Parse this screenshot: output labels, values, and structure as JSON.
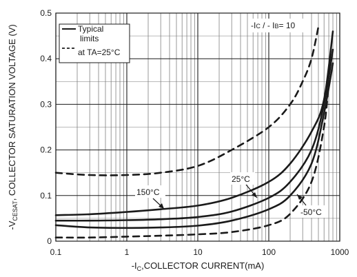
{
  "chart_data": {
    "type": "line",
    "title": "",
    "xscale": "log",
    "xlim": [
      0.1,
      1000
    ],
    "ylim": [
      0,
      0.5
    ],
    "x_ticks": [
      {
        "value": 0.1,
        "label": "0.1"
      },
      {
        "value": 1,
        "label": "1"
      },
      {
        "value": 10,
        "label": "10"
      },
      {
        "value": 100,
        "label": "100"
      },
      {
        "value": 1000,
        "label": "1000"
      }
    ],
    "y_ticks": [
      {
        "value": 0,
        "label": "0"
      },
      {
        "value": 0.1,
        "label": "0.1"
      },
      {
        "value": 0.2,
        "label": "0.2"
      },
      {
        "value": 0.3,
        "label": "0.3"
      },
      {
        "value": 0.4,
        "label": "0.4"
      },
      {
        "value": 0.5,
        "label": "0.5"
      }
    ],
    "ylabel": {
      "prefix": "-V",
      "sub": "CESAT",
      "suffix": ", COLLECTOR SATURATION VOLTAGE (V)"
    },
    "xlabel": {
      "prefix": "-I",
      "sub": "C",
      "suffix": ",COLLECTOR CURRENT(mA)"
    },
    "grid": true,
    "legend": {
      "position": "top-left",
      "typical_line1": "Typical",
      "typical_line2": "limits",
      "limits_line": "at TA=25°C"
    },
    "condition": {
      "text_a": "-I",
      "sub_a": "C",
      "text_b": " / - I",
      "sub_b": "B",
      "text_c": "= 10"
    },
    "annotations": {
      "t150": "150°C",
      "t25": "25°C",
      "tm50": "-50°C"
    },
    "series": [
      {
        "style": "solid",
        "points": [
          [
            0.1,
            0.057
          ],
          [
            0.3,
            0.059
          ],
          [
            1,
            0.064
          ],
          [
            3,
            0.07
          ],
          [
            10,
            0.078
          ],
          [
            30,
            0.095
          ],
          [
            100,
            0.13
          ],
          [
            200,
            0.17
          ],
          [
            400,
            0.24
          ],
          [
            600,
            0.31
          ],
          [
            800,
            0.46
          ]
        ]
      },
      {
        "style": "solid",
        "points": [
          [
            0.1,
            0.045
          ],
          [
            0.3,
            0.045
          ],
          [
            1,
            0.046
          ],
          [
            3,
            0.048
          ],
          [
            10,
            0.053
          ],
          [
            30,
            0.065
          ],
          [
            100,
            0.095
          ],
          [
            200,
            0.13
          ],
          [
            400,
            0.2
          ],
          [
            600,
            0.3
          ],
          [
            800,
            0.42
          ]
        ]
      },
      {
        "style": "solid",
        "points": [
          [
            0.1,
            0.035
          ],
          [
            0.3,
            0.03
          ],
          [
            1,
            0.029
          ],
          [
            3,
            0.03
          ],
          [
            10,
            0.034
          ],
          [
            30,
            0.045
          ],
          [
            100,
            0.07
          ],
          [
            200,
            0.1
          ],
          [
            400,
            0.17
          ],
          [
            600,
            0.28
          ],
          [
            800,
            0.39
          ]
        ]
      },
      {
        "style": "dashed",
        "points": [
          [
            0.1,
            0.15
          ],
          [
            0.3,
            0.145
          ],
          [
            1,
            0.145
          ],
          [
            3,
            0.15
          ],
          [
            10,
            0.165
          ],
          [
            30,
            0.2
          ],
          [
            100,
            0.25
          ],
          [
            200,
            0.3
          ],
          [
            300,
            0.35
          ],
          [
            400,
            0.4
          ],
          [
            500,
            0.47
          ]
        ]
      },
      {
        "style": "dashed",
        "points": [
          [
            0.1,
            0.008
          ],
          [
            0.3,
            0.008
          ],
          [
            1,
            0.01
          ],
          [
            3,
            0.012
          ],
          [
            10,
            0.015
          ],
          [
            30,
            0.02
          ],
          [
            100,
            0.035
          ],
          [
            200,
            0.06
          ],
          [
            400,
            0.13
          ],
          [
            600,
            0.25
          ],
          [
            700,
            0.35
          ]
        ]
      }
    ]
  }
}
